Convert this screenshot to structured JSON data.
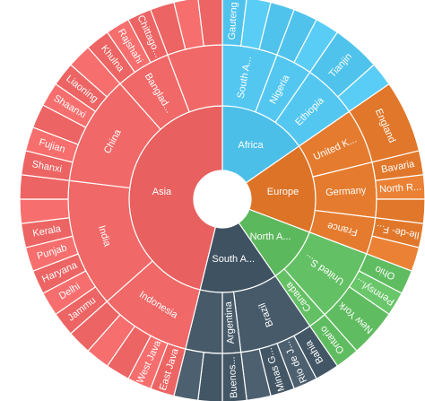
{
  "chart_data": {
    "type": "sunburst",
    "title": "",
    "colors": {
      "Asia": "#e8605f",
      "Africa": "#4cbfe8",
      "Europe": "#dd7326",
      "North America": "#5cb85c",
      "South America": "#3f5261"
    },
    "children": [
      {
        "name": "Asia",
        "label": "Asia",
        "value": 24,
        "children": [
          {
            "name": "Indonesia",
            "label": "Indonesia",
            "value": 5,
            "children": [
              {
                "name": "East Java",
                "label": "East Java",
                "value": 1
              },
              {
                "name": "West Java",
                "label": "West Java",
                "value": 1
              },
              {
                "name": "Indonesia-3",
                "label": "",
                "value": 1
              },
              {
                "name": "Indonesia-4",
                "label": "",
                "value": 1
              },
              {
                "name": "Indonesia-5",
                "label": "",
                "value": 1
              }
            ]
          },
          {
            "name": "India",
            "label": "India",
            "value": 7,
            "children": [
              {
                "name": "Jammu",
                "label": "Jammu",
                "value": 1
              },
              {
                "name": "Delhi",
                "label": "Delhi",
                "value": 1
              },
              {
                "name": "Haryana",
                "label": "Haryana",
                "value": 1
              },
              {
                "name": "Punjab",
                "label": "Punjab",
                "value": 1
              },
              {
                "name": "Kerala",
                "label": "Kerala",
                "value": 1
              },
              {
                "name": "India-6",
                "label": "",
                "value": 1
              },
              {
                "name": "India-7",
                "label": "",
                "value": 1
              }
            ]
          },
          {
            "name": "China",
            "label": "China",
            "value": 6,
            "children": [
              {
                "name": "Shanxi",
                "label": "Shanxi",
                "value": 1
              },
              {
                "name": "Fujian",
                "label": "Fujian",
                "value": 1
              },
              {
                "name": "China-3",
                "label": "",
                "value": 1
              },
              {
                "name": "Shaanxi",
                "label": "Shaanxi",
                "value": 1
              },
              {
                "name": "Liaoning",
                "label": "Liaoning",
                "value": 1
              },
              {
                "name": "China-6",
                "label": "",
                "value": 1
              }
            ]
          },
          {
            "name": "Bangladesh",
            "label": "Banglad...",
            "value": 3,
            "children": [
              {
                "name": "Khulna",
                "label": "Khulna",
                "value": 1
              },
              {
                "name": "Rajshahi",
                "label": "Rajshahi",
                "value": 1
              },
              {
                "name": "Chittagong",
                "label": "Chittago...",
                "value": 1
              }
            ]
          },
          {
            "name": "Asia-gap-1",
            "label": "",
            "value": 3,
            "children": [
              {
                "name": "Asia-gap-1a",
                "label": "",
                "value": 1
              },
              {
                "name": "Asia-gap-1b",
                "label": "",
                "value": 1
              },
              {
                "name": "Asia-gap-1c",
                "label": "",
                "value": 1
              }
            ]
          }
        ]
      },
      {
        "name": "South America",
        "label": "South A...",
        "value": 7,
        "children": [
          {
            "name": "Brazil",
            "label": "Brazil",
            "value": 4,
            "children": [
              {
                "name": "Bahia",
                "label": "Bahia",
                "value": 1
              },
              {
                "name": "Rio de Janeiro",
                "label": "Rio de J...",
                "value": 1
              },
              {
                "name": "Minas Gerais",
                "label": "Minas G...",
                "value": 1
              },
              {
                "name": "Brazil-4",
                "label": "",
                "value": 1
              }
            ]
          },
          {
            "name": "Argentina",
            "label": "Argentina",
            "value": 1,
            "children": [
              {
                "name": "Buenos Aires",
                "label": "Buenos...",
                "value": 1
              }
            ]
          },
          {
            "name": "SouthAmerica-gap",
            "label": "",
            "value": 2,
            "children": [
              {
                "name": "SA-gap-a",
                "label": "",
                "value": 1
              },
              {
                "name": "SA-gap-b",
                "label": "",
                "value": 1
              }
            ]
          }
        ]
      },
      {
        "name": "North America",
        "label": "North A...",
        "value": 5,
        "children": [
          {
            "name": "United States",
            "label": "United S...",
            "value": 4,
            "children": [
              {
                "name": "Ohio",
                "label": "Ohio",
                "value": 1
              },
              {
                "name": "Pennsylvania",
                "label": "Pennsyl...",
                "value": 1
              },
              {
                "name": "New York",
                "label": "New York",
                "value": 2
              }
            ]
          },
          {
            "name": "Canada",
            "label": "Canada",
            "value": 1,
            "children": [
              {
                "name": "Ontario",
                "label": "Ontario",
                "value": 1
              }
            ]
          }
        ]
      },
      {
        "name": "Europe",
        "label": "Europe",
        "value": 8,
        "children": [
          {
            "name": "United Kingdom",
            "label": "United K...",
            "value": 3,
            "children": [
              {
                "name": "England",
                "label": "England",
                "value": 3
              }
            ]
          },
          {
            "name": "Germany",
            "label": "Germany",
            "value": 3,
            "children": [
              {
                "name": "Bavaria",
                "label": "Bavaria",
                "value": 1
              },
              {
                "name": "North Rhine-Westphalia",
                "label": "North R...",
                "value": 1
              },
              {
                "name": "Germany-3",
                "label": "",
                "value": 1
              }
            ]
          },
          {
            "name": "France",
            "label": "France",
            "value": 2,
            "children": [
              {
                "name": "Ile-de-France",
                "label": "Ile-de- F...",
                "value": 1
              },
              {
                "name": "France-2",
                "label": "",
                "value": 1
              }
            ]
          }
        ]
      },
      {
        "name": "Africa",
        "label": "Africa",
        "value": 8,
        "children": [
          {
            "name": "South Africa",
            "label": "South A...",
            "value": 3,
            "children": [
              {
                "name": "Gauteng",
                "label": "Gauteng",
                "value": 1
              },
              {
                "name": "SouthAfrica-2",
                "label": "",
                "value": 1
              },
              {
                "name": "SouthAfrica-3",
                "label": "",
                "value": 1
              }
            ]
          },
          {
            "name": "Nigeria",
            "label": "Nigeria",
            "value": 2,
            "children": [
              {
                "name": "Nigeria-1",
                "label": "",
                "value": 1
              },
              {
                "name": "Nigeria-2",
                "label": "",
                "value": 1
              }
            ]
          },
          {
            "name": "Ethiopia",
            "label": "Ethiopia",
            "value": 3,
            "children": [
              {
                "name": "Tianjin",
                "label": "Tianjin",
                "value": 2
              },
              {
                "name": "Ethiopia-2",
                "label": "",
                "value": 1
              }
            ]
          }
        ]
      }
    ]
  }
}
